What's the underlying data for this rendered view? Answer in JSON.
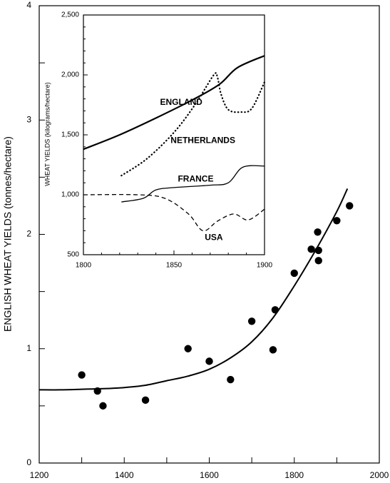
{
  "chart_data": [
    {
      "type": "scatter",
      "ylabel": "ENGLISH WHEAT YIELDS (tonnes/hectare)",
      "xlim": [
        1200,
        2000
      ],
      "ylim": [
        0,
        4
      ],
      "x_ticks": [
        "1200",
        "1400",
        "1600",
        "1800",
        "2000"
      ],
      "y_ticks": [
        "0",
        "1",
        "2",
        "3",
        "4"
      ],
      "points": [
        {
          "x": 1300,
          "y": 0.77
        },
        {
          "x": 1337,
          "y": 0.63
        },
        {
          "x": 1350,
          "y": 0.5
        },
        {
          "x": 1450,
          "y": 0.55
        },
        {
          "x": 1550,
          "y": 1.0
        },
        {
          "x": 1600,
          "y": 0.89
        },
        {
          "x": 1650,
          "y": 0.73
        },
        {
          "x": 1700,
          "y": 1.24
        },
        {
          "x": 1750,
          "y": 0.99
        },
        {
          "x": 1755,
          "y": 1.34
        },
        {
          "x": 1800,
          "y": 1.66
        },
        {
          "x": 1840,
          "y": 1.87
        },
        {
          "x": 1855,
          "y": 2.02
        },
        {
          "x": 1857,
          "y": 1.86
        },
        {
          "x": 1857,
          "y": 1.77
        },
        {
          "x": 1900,
          "y": 2.12
        },
        {
          "x": 1930,
          "y": 2.25
        }
      ],
      "trend": [
        {
          "x": 1200,
          "y": 0.64
        },
        {
          "x": 1250,
          "y": 0.64
        },
        {
          "x": 1300,
          "y": 0.645
        },
        {
          "x": 1350,
          "y": 0.65
        },
        {
          "x": 1400,
          "y": 0.66
        },
        {
          "x": 1450,
          "y": 0.68
        },
        {
          "x": 1500,
          "y": 0.72
        },
        {
          "x": 1550,
          "y": 0.76
        },
        {
          "x": 1600,
          "y": 0.82
        },
        {
          "x": 1650,
          "y": 0.92
        },
        {
          "x": 1700,
          "y": 1.06
        },
        {
          "x": 1750,
          "y": 1.27
        },
        {
          "x": 1800,
          "y": 1.55
        },
        {
          "x": 1850,
          "y": 1.86
        },
        {
          "x": 1900,
          "y": 2.2
        },
        {
          "x": 1925,
          "y": 2.4
        }
      ]
    },
    {
      "type": "line",
      "ylabel": "WHEAT YIELDS (kilograms/hectare)",
      "xlim": [
        1800,
        1900
      ],
      "ylim": [
        500,
        2500
      ],
      "x_ticks": [
        "1800",
        "1850",
        "1900"
      ],
      "y_ticks": [
        "500",
        "1,000",
        "1,500",
        "2,000",
        "2,500"
      ],
      "series": [
        {
          "name": "ENGLAND",
          "style": "solid-thick",
          "points": [
            {
              "x": 1800,
              "y": 1380
            },
            {
              "x": 1820,
              "y": 1500
            },
            {
              "x": 1840,
              "y": 1640
            },
            {
              "x": 1860,
              "y": 1790
            },
            {
              "x": 1875,
              "y": 1920
            },
            {
              "x": 1885,
              "y": 2060
            },
            {
              "x": 1900,
              "y": 2160
            }
          ]
        },
        {
          "name": "NETHERLANDS",
          "style": "dotted",
          "points": [
            {
              "x": 1821,
              "y": 1160
            },
            {
              "x": 1835,
              "y": 1300
            },
            {
              "x": 1850,
              "y": 1520
            },
            {
              "x": 1862,
              "y": 1760
            },
            {
              "x": 1872,
              "y": 2000
            },
            {
              "x": 1874,
              "y": 1980
            },
            {
              "x": 1876,
              "y": 1840
            },
            {
              "x": 1880,
              "y": 1710
            },
            {
              "x": 1887,
              "y": 1690
            },
            {
              "x": 1893,
              "y": 1720
            },
            {
              "x": 1900,
              "y": 1940
            }
          ]
        },
        {
          "name": "FRANCE",
          "style": "solid-thin",
          "points": [
            {
              "x": 1821,
              "y": 940
            },
            {
              "x": 1833,
              "y": 970
            },
            {
              "x": 1840,
              "y": 1040
            },
            {
              "x": 1850,
              "y": 1060
            },
            {
              "x": 1870,
              "y": 1080
            },
            {
              "x": 1880,
              "y": 1100
            },
            {
              "x": 1888,
              "y": 1230
            },
            {
              "x": 1900,
              "y": 1240
            }
          ]
        },
        {
          "name": "USA",
          "style": "dashed",
          "points": [
            {
              "x": 1800,
              "y": 1000
            },
            {
              "x": 1830,
              "y": 1000
            },
            {
              "x": 1845,
              "y": 970
            },
            {
              "x": 1858,
              "y": 840
            },
            {
              "x": 1866,
              "y": 700
            },
            {
              "x": 1874,
              "y": 780
            },
            {
              "x": 1883,
              "y": 840
            },
            {
              "x": 1891,
              "y": 790
            },
            {
              "x": 1900,
              "y": 880
            }
          ]
        }
      ]
    }
  ]
}
